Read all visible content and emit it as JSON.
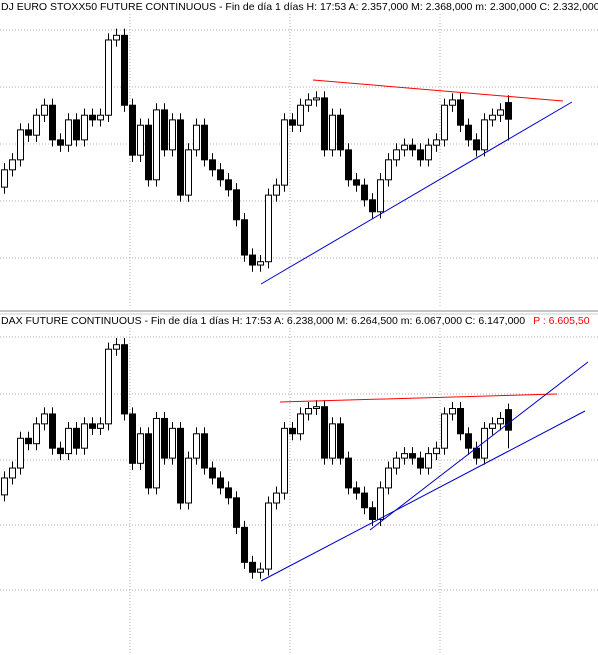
{
  "chart_data": [
    {
      "type": "candlestick",
      "title": "DJ EURO STOXX50 FUTURE CONTINUOUS - Fin de día 1 días H: 17:53  A: 2.357,000  M: 2.368,000  m: 2.300,000  C: 2.332,000",
      "up_color": "#ffffff",
      "down_color": "#000000",
      "ylim": [
        2053,
        2484
      ],
      "open": [
        2230,
        2256,
        2271,
        2316,
        2308,
        2338,
        2353,
        2301,
        2293,
        2331,
        2301,
        2338,
        2331,
        2338,
        2451,
        2458,
        2353,
        2278,
        2323,
        2241,
        2346,
        2286,
        2331,
        2218,
        2286,
        2323,
        2271,
        2256,
        2241,
        2226,
        2181,
        2128,
        2113,
        2118,
        2218,
        2233,
        2331,
        2323,
        2353,
        2361,
        2364,
        2286,
        2338,
        2286,
        2241,
        2233,
        2211,
        2193,
        2241,
        2271,
        2286,
        2293,
        2286,
        2271,
        2293,
        2301,
        2353,
        2361,
        2323,
        2301,
        2286,
        2331,
        2338,
        2357
      ],
      "high": [
        2266,
        2281,
        2326,
        2326,
        2348,
        2363,
        2363,
        2311,
        2341,
        2341,
        2348,
        2348,
        2348,
        2461,
        2468,
        2468,
        2363,
        2333,
        2333,
        2356,
        2356,
        2341,
        2341,
        2296,
        2333,
        2333,
        2281,
        2266,
        2251,
        2236,
        2191,
        2138,
        2128,
        2228,
        2243,
        2341,
        2341,
        2363,
        2371,
        2374,
        2374,
        2348,
        2348,
        2296,
        2251,
        2243,
        2221,
        2251,
        2281,
        2296,
        2303,
        2303,
        2296,
        2303,
        2311,
        2363,
        2371,
        2371,
        2333,
        2311,
        2341,
        2348,
        2356,
        2368
      ],
      "low": [
        2220,
        2246,
        2261,
        2298,
        2298,
        2328,
        2291,
        2283,
        2283,
        2291,
        2291,
        2321,
        2321,
        2328,
        2441,
        2343,
        2268,
        2268,
        2231,
        2231,
        2276,
        2276,
        2208,
        2208,
        2276,
        2261,
        2246,
        2231,
        2216,
        2171,
        2118,
        2103,
        2103,
        2108,
        2208,
        2223,
        2313,
        2313,
        2343,
        2351,
        2276,
        2276,
        2276,
        2231,
        2223,
        2201,
        2183,
        2183,
        2231,
        2261,
        2276,
        2276,
        2261,
        2261,
        2283,
        2291,
        2343,
        2313,
        2291,
        2276,
        2276,
        2321,
        2328,
        2300
      ],
      "close": [
        2256,
        2271,
        2316,
        2308,
        2338,
        2353,
        2301,
        2293,
        2331,
        2301,
        2338,
        2331,
        2338,
        2451,
        2458,
        2353,
        2278,
        2323,
        2241,
        2346,
        2286,
        2331,
        2218,
        2286,
        2323,
        2271,
        2256,
        2241,
        2226,
        2181,
        2128,
        2113,
        2118,
        2218,
        2233,
        2331,
        2323,
        2353,
        2361,
        2364,
        2286,
        2338,
        2286,
        2241,
        2233,
        2211,
        2193,
        2241,
        2271,
        2286,
        2293,
        2286,
        2271,
        2293,
        2301,
        2353,
        2361,
        2323,
        2301,
        2286,
        2331,
        2338,
        2346,
        2332
      ]
    },
    {
      "type": "candlestick",
      "title": "DAX FUTURE CONTINUOUS - Fin de día 1 días H: 17:53  A: 6.238,000  M: 6.264,500  m: 6.067,000  C: 6.147,000",
      "price_label": "P : 6.605,50",
      "price_label_color": "#ff0000",
      "up_color": "#ffffff",
      "down_color": "#000000",
      "ylim": [
        5150,
        6600
      ],
      "open": [
        5860,
        5935,
        5979,
        6111,
        6087,
        6175,
        6219,
        6067,
        6043,
        6155,
        6067,
        6175,
        6155,
        6175,
        6506,
        6526,
        6219,
        6000,
        6131,
        5891,
        6199,
        6023,
        6155,
        5824,
        6023,
        6131,
        5979,
        5935,
        5891,
        5847,
        5716,
        5561,
        5517,
        5531,
        5824,
        5868,
        6155,
        6131,
        6219,
        6243,
        6251,
        6023,
        6175,
        6023,
        5891,
        5868,
        5803,
        5751,
        5891,
        5979,
        6023,
        6043,
        6023,
        5979,
        6043,
        6067,
        6219,
        6243,
        6131,
        6067,
        6023,
        6155,
        6175,
        6238
      ],
      "high": [
        5964,
        6008,
        6140,
        6140,
        6204,
        6248,
        6248,
        6096,
        6184,
        6184,
        6204,
        6204,
        6204,
        6535,
        6555,
        6555,
        6248,
        6160,
        6160,
        6228,
        6228,
        6184,
        6184,
        6052,
        6160,
        6160,
        6008,
        5964,
        5920,
        5876,
        5745,
        5590,
        5560,
        5853,
        5897,
        6184,
        6184,
        6248,
        6272,
        6280,
        6280,
        6204,
        6204,
        6052,
        5920,
        5897,
        5832,
        5920,
        6008,
        6052,
        6072,
        6072,
        6052,
        6072,
        6096,
        6248,
        6272,
        6272,
        6160,
        6096,
        6184,
        6204,
        6228,
        6264.5
      ],
      "low": [
        5831,
        5906,
        5950,
        6058,
        6058,
        6146,
        6038,
        6014,
        6014,
        6038,
        6038,
        6126,
        6126,
        6146,
        6477,
        6190,
        5971,
        5971,
        5862,
        5862,
        5994,
        5994,
        5795,
        5795,
        5994,
        5950,
        5906,
        5862,
        5818,
        5687,
        5532,
        5488,
        5488,
        5502,
        5795,
        5839,
        6102,
        6102,
        6190,
        6214,
        5994,
        5994,
        5994,
        5862,
        5839,
        5774,
        5722,
        5722,
        5862,
        5950,
        5994,
        5994,
        5950,
        5950,
        6014,
        6038,
        6190,
        6102,
        6038,
        5994,
        5994,
        6126,
        6146,
        6067
      ],
      "close": [
        5935,
        5979,
        6111,
        6087,
        6175,
        6219,
        6067,
        6043,
        6155,
        6067,
        6175,
        6155,
        6175,
        6506,
        6526,
        6219,
        6000,
        6131,
        5891,
        6199,
        6023,
        6155,
        5824,
        6023,
        6131,
        5979,
        5935,
        5891,
        5847,
        5716,
        5561,
        5517,
        5531,
        5824,
        5868,
        6155,
        6131,
        6219,
        6243,
        6251,
        6023,
        6175,
        6023,
        5891,
        5868,
        5803,
        5751,
        5891,
        5979,
        6023,
        6043,
        6023,
        5979,
        6043,
        6067,
        6219,
        6243,
        6131,
        6067,
        6023,
        6155,
        6175,
        6199,
        6147
      ]
    }
  ]
}
